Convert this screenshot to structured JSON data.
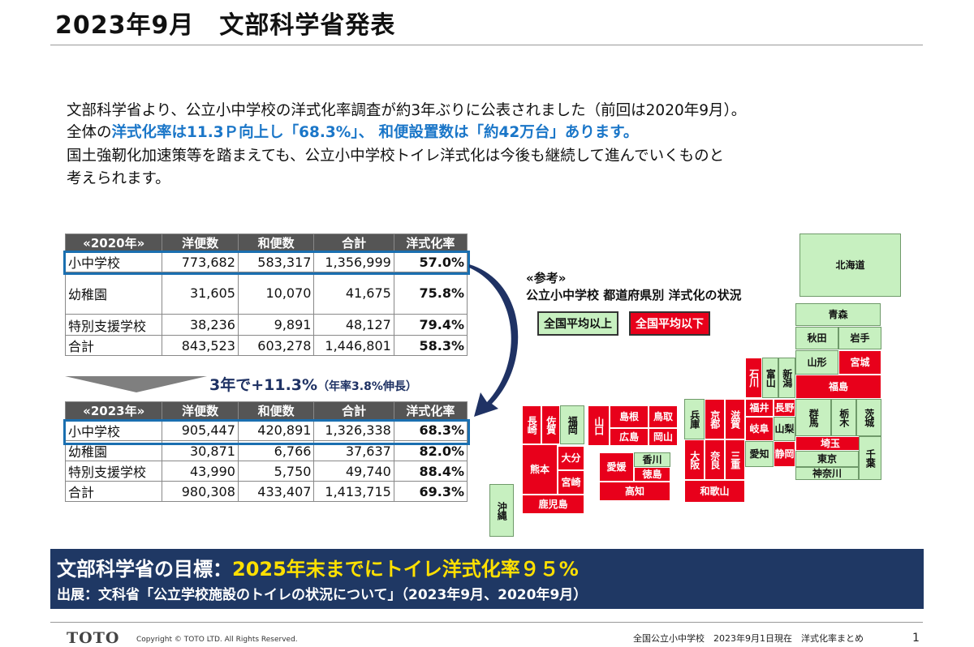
{
  "title": "2023年9月　文部科学省発表",
  "intro": {
    "line1": "文部科学省より、公立小中学校の洋式化率調査が約3年ぶりに公表されました（前回は2020年9月）。",
    "line2_a": "全体の",
    "line2_b": "洋式化率は11.3Ｐ向上し「68.3%」、 和便設置数は「約42万台」あります。",
    "line3": "国土強靭化加速策等を踏まえても、公立小中学校トイレ洋式化は今後も継続して進んでいくものと",
    "line4": "考えられます。"
  },
  "table_2020": {
    "headers": [
      "«2020年»",
      "洋便数",
      "和便数",
      "合計",
      "洋式化率"
    ],
    "rows": [
      [
        "小中学校",
        "773,682",
        "583,317",
        "1,356,999",
        "57.0%"
      ],
      [
        "幼稚園",
        "31,605",
        "10,070",
        "41,675",
        "75.8%"
      ],
      [
        "特別支援学校",
        "38,236",
        "9,891",
        "48,127",
        "79.4%"
      ],
      [
        "合計",
        "843,523",
        "603,278",
        "1,446,801",
        "58.3%"
      ]
    ]
  },
  "table_2023": {
    "headers": [
      "«2023年»",
      "洋便数",
      "和便数",
      "合計",
      "洋式化率"
    ],
    "rows": [
      [
        "小中学校",
        "905,447",
        "420,891",
        "1,326,338",
        "68.3%"
      ],
      [
        "幼稚園",
        "30,871",
        "6,766",
        "37,637",
        "82.0%"
      ],
      [
        "特別支援学校",
        "43,990",
        "5,750",
        "49,740",
        "88.4%"
      ],
      [
        "合計",
        "980,308",
        "433,407",
        "1,413,715",
        "69.3%"
      ]
    ]
  },
  "growth": {
    "main": "3年で+11.3%",
    "sub": "（年率3.8%伸長）"
  },
  "reference": {
    "line1": "«参考»",
    "line2": "公立小中学校 都道府県別 洋式化の状況",
    "legend_above": "全国平均以上",
    "legend_below": "全国平均以下"
  },
  "colors": {
    "above": "#c7f0c0",
    "below": "#e8001b",
    "banner": "#1f3864",
    "accent": "#1a76c8",
    "goal_highlight": "#ffe000"
  },
  "prefectures": [
    {
      "name": "北海道",
      "status": "above"
    },
    {
      "name": "青森",
      "status": "above"
    },
    {
      "name": "秋田",
      "status": "above"
    },
    {
      "name": "岩手",
      "status": "above"
    },
    {
      "name": "山形",
      "status": "above"
    },
    {
      "name": "宮城",
      "status": "below"
    },
    {
      "name": "福島",
      "status": "below"
    },
    {
      "name": "新潟",
      "status": "above"
    },
    {
      "name": "富山",
      "status": "above"
    },
    {
      "name": "石川",
      "status": "below"
    },
    {
      "name": "長野",
      "status": "below"
    },
    {
      "name": "福井",
      "status": "below"
    },
    {
      "name": "岐阜",
      "status": "below"
    },
    {
      "name": "山梨",
      "status": "above"
    },
    {
      "name": "群馬",
      "status": "above"
    },
    {
      "name": "栃木",
      "status": "above"
    },
    {
      "name": "茨城",
      "status": "above"
    },
    {
      "name": "埼玉",
      "status": "below"
    },
    {
      "name": "千葉",
      "status": "above"
    },
    {
      "name": "東京",
      "status": "above"
    },
    {
      "name": "神奈川",
      "status": "above"
    },
    {
      "name": "愛知",
      "status": "above"
    },
    {
      "name": "静岡",
      "status": "below"
    },
    {
      "name": "滋賀",
      "status": "below"
    },
    {
      "name": "京都",
      "status": "below"
    },
    {
      "name": "兵庫",
      "status": "above"
    },
    {
      "name": "大阪",
      "status": "below"
    },
    {
      "name": "奈良",
      "status": "below"
    },
    {
      "name": "三重",
      "status": "below"
    },
    {
      "name": "和歌山",
      "status": "below"
    },
    {
      "name": "鳥取",
      "status": "below"
    },
    {
      "name": "島根",
      "status": "below"
    },
    {
      "name": "岡山",
      "status": "below"
    },
    {
      "name": "広島",
      "status": "below"
    },
    {
      "name": "山口",
      "status": "below"
    },
    {
      "name": "香川",
      "status": "above"
    },
    {
      "name": "徳島",
      "status": "below"
    },
    {
      "name": "愛媛",
      "status": "below"
    },
    {
      "name": "高知",
      "status": "below"
    },
    {
      "name": "福岡",
      "status": "above"
    },
    {
      "name": "佐賀",
      "status": "below"
    },
    {
      "name": "長崎",
      "status": "below"
    },
    {
      "name": "大分",
      "status": "below"
    },
    {
      "name": "熊本",
      "status": "below"
    },
    {
      "name": "宮崎",
      "status": "below"
    },
    {
      "name": "鹿児島",
      "status": "below"
    },
    {
      "name": "沖縄",
      "status": "above"
    }
  ],
  "goal": {
    "prefix": "文部科学省の目標：",
    "highlight": "2025年末までに",
    "highlight2": "トイレ洋式化率９５%"
  },
  "source": "出展：文科省「公立学校施設のトイレの状況について」（2023年9月、2020年9月）",
  "footer": {
    "logo": "TOTO",
    "copyright": "Copyright © TOTO LTD. All Rights Reserved.",
    "note": "全国公立小中学校　2023年9月1日現在　洋式化率まとめ",
    "page": "1"
  }
}
